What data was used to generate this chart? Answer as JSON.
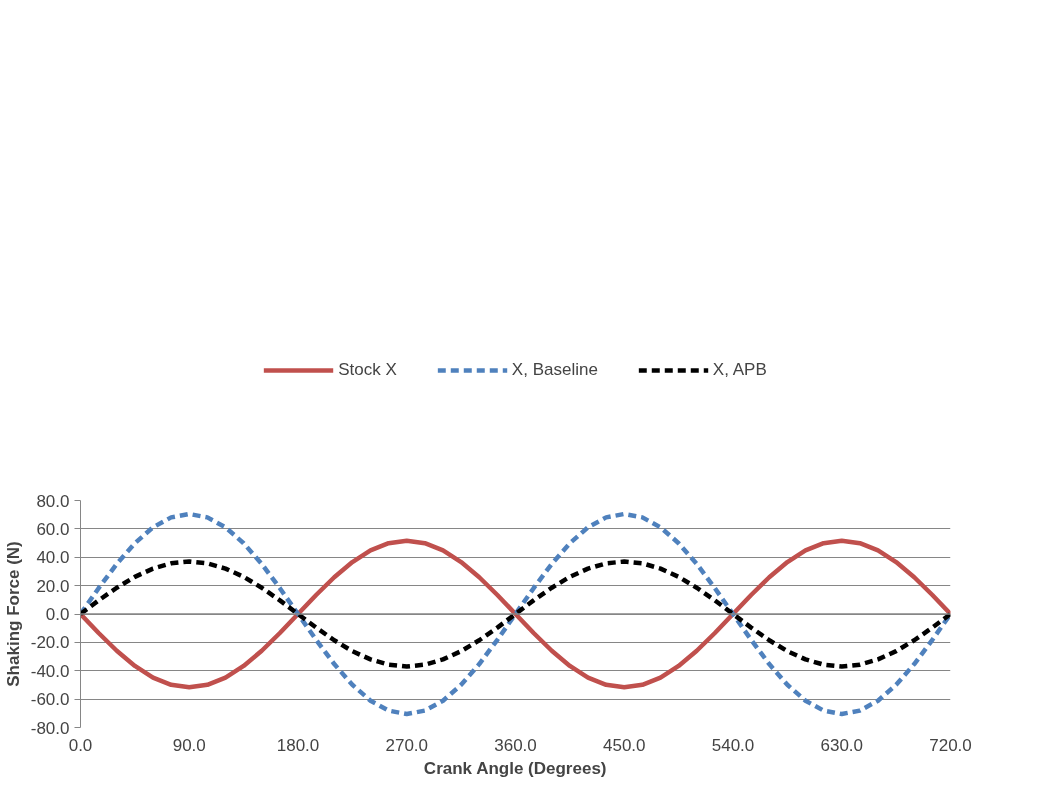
{
  "chart_data": {
    "type": "line",
    "xlabel": "Crank Angle (Degrees)",
    "ylabel": "Shaking Force (N)",
    "x": [
      0,
      15,
      30,
      45,
      60,
      75,
      90,
      105,
      120,
      135,
      150,
      165,
      180,
      195,
      210,
      225,
      240,
      255,
      270,
      285,
      300,
      315,
      330,
      345,
      360,
      375,
      390,
      405,
      420,
      435,
      450,
      465,
      480,
      495,
      510,
      525,
      540,
      555,
      570,
      585,
      600,
      615,
      630,
      645,
      660,
      675,
      690,
      705,
      720
    ],
    "series": [
      {
        "name": "Stock X",
        "color": "#c0504d",
        "line_style": "solid",
        "values": [
          0,
          -13.4,
          -25.9,
          -36.6,
          -44.8,
          -49.9,
          -51.7,
          -49.9,
          -44.8,
          -36.6,
          -25.9,
          -13.4,
          0,
          13.4,
          25.9,
          36.6,
          44.8,
          49.9,
          51.7,
          49.9,
          44.8,
          36.6,
          25.9,
          13.4,
          0,
          -13.4,
          -25.9,
          -36.6,
          -44.8,
          -49.9,
          -51.7,
          -49.9,
          -44.8,
          -36.6,
          -25.9,
          -13.4,
          0,
          13.4,
          25.9,
          36.6,
          44.8,
          49.9,
          51.7,
          49.9,
          44.8,
          36.6,
          25.9,
          13.4,
          0
        ]
      },
      {
        "name": "X, Baseline",
        "color": "#4f81bd",
        "line_style": "dashed",
        "values": [
          0,
          18.2,
          35.3,
          49.9,
          61.1,
          68.1,
          70.5,
          68.1,
          61.1,
          49.9,
          35.3,
          18.2,
          0,
          -18.2,
          -35.3,
          -49.9,
          -61.1,
          -68.1,
          -70.5,
          -68.1,
          -61.1,
          -49.9,
          -35.3,
          -18.2,
          0,
          18.2,
          35.3,
          49.9,
          61.1,
          68.1,
          70.5,
          68.1,
          61.1,
          49.9,
          35.3,
          18.2,
          0,
          -18.2,
          -35.3,
          -49.9,
          -61.1,
          -68.1,
          -70.5,
          -68.1,
          -61.1,
          -49.9,
          -35.3,
          -18.2,
          0
        ]
      },
      {
        "name": "X, APB",
        "color": "#000000",
        "line_style": "dashed",
        "values": [
          0,
          9.6,
          18.5,
          26.2,
          32.0,
          35.7,
          37.0,
          35.7,
          32.0,
          26.2,
          18.5,
          9.6,
          0,
          -9.6,
          -18.5,
          -26.2,
          -32.0,
          -35.7,
          -37.0,
          -35.7,
          -32.0,
          -26.2,
          -18.5,
          -9.6,
          0,
          9.6,
          18.5,
          26.2,
          32.0,
          35.7,
          37.0,
          35.7,
          32.0,
          26.2,
          18.5,
          9.6,
          0,
          -9.6,
          -18.5,
          -26.2,
          -32.0,
          -35.7,
          -37.0,
          -35.7,
          -32.0,
          -26.2,
          -18.5,
          -9.6,
          0
        ]
      }
    ],
    "xlim": [
      0,
      720
    ],
    "xticks": [
      {
        "value": 0,
        "label": "0.0"
      },
      {
        "value": 90,
        "label": "90.0"
      },
      {
        "value": 180,
        "label": "180.0"
      },
      {
        "value": 270,
        "label": "270.0"
      },
      {
        "value": 360,
        "label": "360.0"
      },
      {
        "value": 450,
        "label": "450.0"
      },
      {
        "value": 540,
        "label": "540.0"
      },
      {
        "value": 630,
        "label": "630.0"
      },
      {
        "value": 720,
        "label": "720.0"
      }
    ],
    "ylim": [
      -80,
      80
    ],
    "yticks": [
      {
        "value": -80,
        "label": "-80.0"
      },
      {
        "value": -60,
        "label": "-60.0"
      },
      {
        "value": -40,
        "label": "-40.0"
      },
      {
        "value": -20,
        "label": "-20.0"
      },
      {
        "value": 0,
        "label": "0.0"
      },
      {
        "value": 20,
        "label": "20.0"
      },
      {
        "value": 40,
        "label": "40.0"
      },
      {
        "value": 60,
        "label": "60.0"
      },
      {
        "value": 80,
        "label": "80.0"
      }
    ],
    "ref_lines": [
      {
        "axis": "y",
        "value": 0,
        "color": "#868686"
      }
    ],
    "grid": "y",
    "legend": "top",
    "marker": "none"
  }
}
